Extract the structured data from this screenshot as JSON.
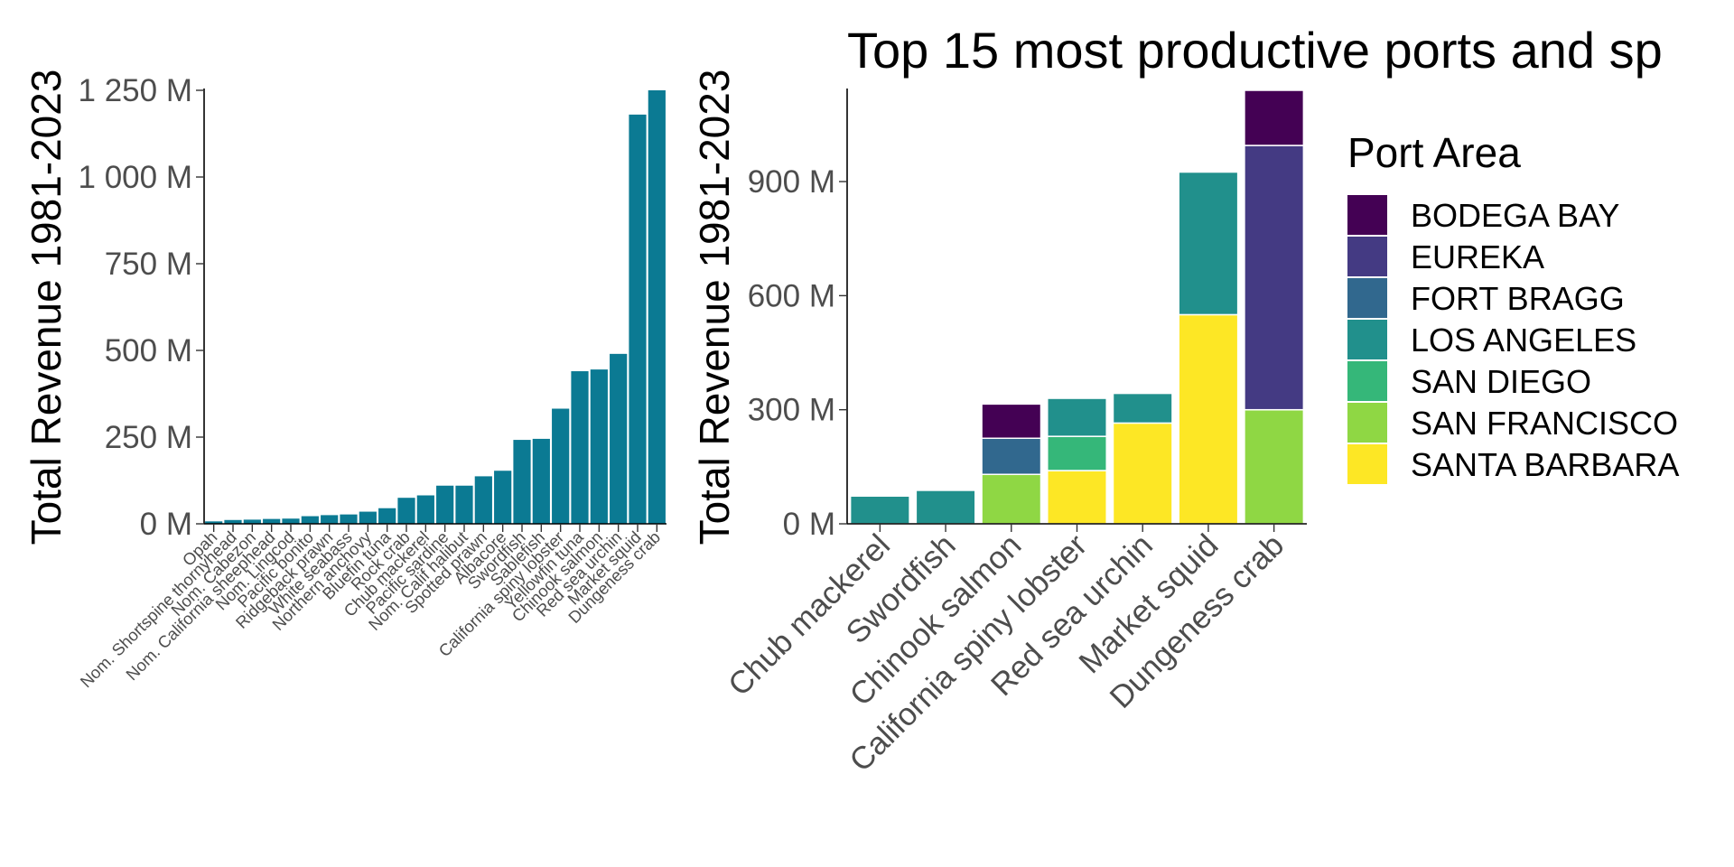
{
  "chart_data": [
    {
      "type": "bar",
      "title": "",
      "xlabel": "",
      "ylabel": "Total Revenue 1981-2023",
      "ylim": [
        0,
        1250000000
      ],
      "y_ticks": [
        0,
        250000000,
        500000000,
        750000000,
        1000000000,
        1250000000
      ],
      "y_tick_labels": [
        "0 M",
        "250 M",
        "500 M",
        "750 M",
        "1 000 M",
        "1 250 M"
      ],
      "bar_color": "#0B7A93",
      "grid": false,
      "categories": [
        "Opah",
        "Nom. Shortspine thornyhead",
        "Nom. Cabezon",
        "Nom. California sheephead",
        "Nom. Lingcod",
        "Pacific bonito",
        "Ridgeback prawn",
        "White seabass",
        "Northern anchovy",
        "Bluefin tuna",
        "Rock crab",
        "Chub mackerel",
        "Pacific sardine",
        "Nom. Calif halibut",
        "Spotted prawn",
        "Albacore",
        "Swordfish",
        "Sablefish",
        "California spiny lobster",
        "Yellowfin tuna",
        "Chinook salmon",
        "Red sea urchin",
        "Market squid",
        "Dungeness crab"
      ],
      "values": [
        7000000,
        11000000,
        12000000,
        14000000,
        15000000,
        22000000,
        25000000,
        27000000,
        35000000,
        45000000,
        75000000,
        82000000,
        110000000,
        110000000,
        137000000,
        153000000,
        242000000,
        245000000,
        332000000,
        440000000,
        445000000,
        490000000,
        1180000000,
        1250000000
      ]
    },
    {
      "type": "bar",
      "stacked": true,
      "title": "Top 15 most productive ports and sp",
      "xlabel": "",
      "ylabel": "Total Revenue 1981-2023",
      "ylim": [
        0,
        1140000000
      ],
      "y_ticks": [
        0,
        300000000,
        600000000,
        900000000
      ],
      "y_tick_labels": [
        "0 M",
        "300 M",
        "600 M",
        "900 M"
      ],
      "grid": false,
      "legend": {
        "title": "Port Area",
        "position": "right",
        "entries": [
          {
            "name": "BODEGA BAY",
            "color": "#440154"
          },
          {
            "name": "EUREKA",
            "color": "#443A83"
          },
          {
            "name": "FORT BRAGG",
            "color": "#31688E"
          },
          {
            "name": "LOS ANGELES",
            "color": "#21908C"
          },
          {
            "name": "SAN DIEGO",
            "color": "#35B779"
          },
          {
            "name": "SAN FRANCISCO",
            "color": "#8FD744"
          },
          {
            "name": "SANTA BARBARA",
            "color": "#FDE725"
          }
        ]
      },
      "categories": [
        "Chub mackerel",
        "Swordfish",
        "Chinook salmon",
        "California spiny lobster",
        "Red sea urchin",
        "Market squid",
        "Dungeness crab"
      ],
      "series": [
        {
          "name": "SAN FRANCISCO",
          "values": [
            0,
            0,
            130000000,
            0,
            0,
            0,
            300000000
          ]
        },
        {
          "name": "SANTA BARBARA",
          "values": [
            0,
            0,
            0,
            140000000,
            265000000,
            550000000,
            0
          ]
        },
        {
          "name": "SAN DIEGO",
          "values": [
            0,
            0,
            0,
            90000000,
            0,
            0,
            0
          ]
        },
        {
          "name": "LOS ANGELES",
          "values": [
            73000000,
            88000000,
            0,
            100000000,
            78000000,
            375000000,
            0
          ]
        },
        {
          "name": "FORT BRAGG",
          "values": [
            0,
            0,
            95000000,
            0,
            0,
            0,
            0
          ]
        },
        {
          "name": "EUREKA",
          "values": [
            0,
            0,
            0,
            0,
            0,
            0,
            695000000
          ]
        },
        {
          "name": "BODEGA BAY",
          "values": [
            0,
            0,
            90000000,
            0,
            0,
            0,
            145000000
          ]
        }
      ]
    }
  ]
}
